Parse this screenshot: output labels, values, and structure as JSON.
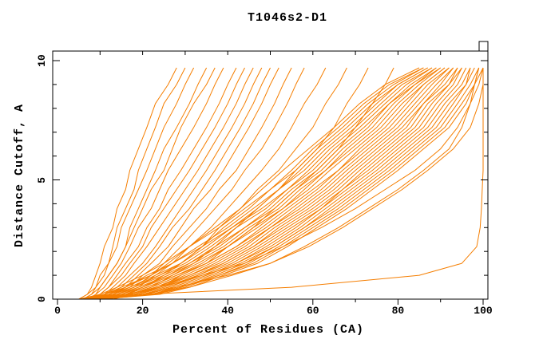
{
  "title": "T1046s2-D1",
  "chart_data": {
    "type": "line",
    "title": "T1046s2-D1",
    "xlabel": "Percent of Residues (CA)",
    "ylabel": "Distance Cutoff, A",
    "xlim": [
      0,
      100
    ],
    "ylim": [
      0,
      10
    ],
    "grid": "off",
    "legend": "none",
    "frame": "full-box-with-corner-notch",
    "line_color": "#f57e00",
    "axis_color": "#000000",
    "x_major_ticks": [
      0,
      20,
      40,
      60,
      80,
      100
    ],
    "x_minor_ticks": [
      10,
      30,
      50,
      70,
      90
    ],
    "x_tick_labels": [
      "0",
      "20",
      "40",
      "60",
      "80",
      "100"
    ],
    "top_ticks": [
      10,
      20,
      30,
      40,
      50,
      60,
      70,
      80,
      90
    ],
    "y_major_ticks": [
      0,
      5,
      10
    ],
    "y_minor_ticks": [
      1,
      2,
      3,
      4,
      6,
      7,
      8,
      9
    ],
    "y_tick_labels": [
      "0",
      "5",
      "10"
    ],
    "description": "Cumulative curves: percent of CA residues (x) under a distance cutoff in Angstroms (y), one curve per model",
    "y_levels": [
      0,
      0.2,
      0.5,
      1,
      1.5,
      2.2,
      3,
      3.8,
      4.6,
      5.4,
      6.3,
      7.2,
      8.2,
      9,
      9.7
    ],
    "series": [
      {
        "x": [
          5,
          7,
          8,
          9,
          10,
          11,
          13,
          14,
          16,
          17,
          19,
          21,
          23,
          26,
          28
        ]
      },
      {
        "x": [
          6,
          8,
          9,
          10,
          12,
          13,
          14,
          16,
          18,
          19,
          21,
          23,
          25,
          28,
          30
        ]
      },
      {
        "x": [
          5,
          7,
          9,
          11,
          12,
          14,
          15,
          17,
          19,
          21,
          23,
          25,
          28,
          30,
          32
        ]
      },
      {
        "x": [
          7,
          9,
          10,
          12,
          14,
          16,
          17,
          19,
          21,
          23,
          25,
          28,
          31,
          33,
          35
        ]
      },
      {
        "x": [
          6,
          8,
          10,
          12,
          14,
          16,
          18,
          20,
          22,
          25,
          27,
          29,
          32,
          35,
          37
        ]
      },
      {
        "x": [
          7,
          9,
          11,
          13,
          15,
          17,
          19,
          22,
          24,
          26,
          29,
          32,
          35,
          37,
          39
        ]
      },
      {
        "x": [
          8,
          10,
          12,
          14,
          16,
          19,
          21,
          24,
          26,
          29,
          32,
          35,
          38,
          40,
          42
        ]
      },
      {
        "x": [
          7,
          10,
          12,
          15,
          17,
          20,
          22,
          25,
          28,
          31,
          34,
          37,
          40,
          42,
          44
        ]
      },
      {
        "x": [
          8,
          11,
          13,
          16,
          18,
          21,
          24,
          27,
          30,
          33,
          36,
          39,
          42,
          44,
          46
        ]
      },
      {
        "x": [
          8,
          11,
          14,
          17,
          20,
          23,
          26,
          29,
          32,
          35,
          38,
          41,
          44,
          46,
          48
        ]
      },
      {
        "x": [
          9,
          12,
          15,
          18,
          21,
          24,
          27,
          31,
          34,
          37,
          40,
          43,
          46,
          48,
          50
        ]
      },
      {
        "x": [
          9,
          13,
          16,
          19,
          22,
          26,
          29,
          32,
          36,
          39,
          42,
          45,
          48,
          50,
          52
        ]
      },
      {
        "x": [
          10,
          13,
          17,
          20,
          24,
          27,
          31,
          35,
          38,
          42,
          45,
          48,
          51,
          53,
          55
        ]
      },
      {
        "x": [
          10,
          14,
          18,
          22,
          25,
          29,
          33,
          37,
          41,
          44,
          48,
          51,
          54,
          56,
          58
        ]
      },
      {
        "x": [
          11,
          15,
          19,
          23,
          27,
          31,
          36,
          40,
          44,
          48,
          52,
          55,
          58,
          61,
          63
        ]
      },
      {
        "x": [
          12,
          16,
          20,
          25,
          29,
          34,
          38,
          43,
          47,
          52,
          56,
          60,
          63,
          66,
          68
        ]
      },
      {
        "x": [
          12,
          17,
          22,
          27,
          32,
          37,
          42,
          47,
          52,
          56,
          61,
          65,
          68,
          71,
          73
        ]
      },
      {
        "x": [
          13,
          18,
          24,
          29,
          35,
          40,
          46,
          51,
          56,
          61,
          66,
          70,
          74,
          77,
          79
        ]
      },
      {
        "x": [
          5,
          10,
          14,
          20,
          25,
          31,
          37,
          43,
          48,
          53,
          59,
          65,
          71,
          77,
          85
        ]
      },
      {
        "x": [
          5,
          11,
          15,
          22,
          26,
          31,
          38,
          44,
          50,
          55,
          60,
          66,
          72,
          78,
          86
        ]
      },
      {
        "x": [
          6,
          11,
          16,
          21,
          27,
          34,
          39,
          45,
          50,
          56,
          61,
          67,
          73,
          79,
          86
        ]
      },
      {
        "x": [
          6,
          12,
          16,
          22,
          27,
          33,
          40,
          46,
          52,
          57,
          62,
          68,
          74,
          80,
          87
        ]
      },
      {
        "x": [
          5,
          12,
          17,
          23,
          29,
          34,
          41,
          47,
          52,
          58,
          63,
          69,
          75,
          80,
          87
        ]
      },
      {
        "x": [
          6,
          13,
          17,
          24,
          29,
          35,
          41,
          48,
          54,
          59,
          64,
          70,
          76,
          81,
          88
        ]
      },
      {
        "x": [
          6,
          13,
          18,
          24,
          30,
          36,
          42,
          49,
          54,
          60,
          65,
          71,
          77,
          82,
          88
        ]
      },
      {
        "x": [
          7,
          14,
          18,
          25,
          31,
          37,
          44,
          50,
          55,
          61,
          66,
          72,
          78,
          83,
          89
        ]
      },
      {
        "x": [
          6,
          14,
          19,
          26,
          31,
          38,
          44,
          51,
          56,
          62,
          67,
          73,
          78,
          84,
          89
        ]
      },
      {
        "x": [
          6,
          15,
          20,
          26,
          32,
          39,
          45,
          52,
          57,
          63,
          68,
          74,
          79,
          84,
          90
        ]
      },
      {
        "x": [
          7,
          15,
          20,
          27,
          33,
          40,
          46,
          53,
          58,
          63,
          69,
          75,
          80,
          85,
          90
        ]
      },
      {
        "x": [
          7,
          16,
          21,
          28,
          34,
          40,
          47,
          53,
          59,
          64,
          70,
          76,
          81,
          86,
          91
        ]
      },
      {
        "x": [
          7,
          16,
          21,
          28,
          35,
          42,
          48,
          54,
          60,
          66,
          71,
          77,
          82,
          86,
          91
        ]
      },
      {
        "x": [
          8,
          17,
          22,
          29,
          35,
          42,
          49,
          55,
          61,
          66,
          72,
          78,
          83,
          87,
          92
        ]
      },
      {
        "x": [
          7,
          17,
          23,
          30,
          36,
          43,
          50,
          56,
          62,
          67,
          73,
          79,
          84,
          88,
          92
        ]
      },
      {
        "x": [
          8,
          18,
          23,
          31,
          37,
          44,
          50,
          57,
          63,
          68,
          74,
          80,
          85,
          89,
          93
        ]
      },
      {
        "x": [
          8,
          18,
          24,
          31,
          38,
          45,
          51,
          58,
          64,
          69,
          75,
          81,
          86,
          90,
          93
        ]
      },
      {
        "x": [
          8,
          19,
          24,
          32,
          39,
          46,
          52,
          59,
          65,
          70,
          76,
          82,
          86,
          91,
          94
        ]
      },
      {
        "x": [
          9,
          19,
          25,
          33,
          39,
          46,
          53,
          60,
          66,
          71,
          77,
          83,
          87,
          92,
          94
        ]
      },
      {
        "x": [
          8,
          20,
          26,
          33,
          40,
          47,
          54,
          61,
          67,
          72,
          78,
          84,
          88,
          92,
          95
        ]
      },
      {
        "x": [
          9,
          20,
          26,
          34,
          41,
          48,
          55,
          62,
          67,
          73,
          79,
          85,
          89,
          93,
          95
        ]
      },
      {
        "x": [
          9,
          21,
          27,
          35,
          42,
          49,
          56,
          62,
          68,
          74,
          80,
          86,
          90,
          94,
          96
        ]
      },
      {
        "x": [
          9,
          21,
          27,
          35,
          42,
          50,
          57,
          63,
          69,
          75,
          81,
          87,
          91,
          95,
          97
        ]
      },
      {
        "x": [
          10,
          22,
          28,
          36,
          43,
          51,
          58,
          64,
          70,
          76,
          82,
          88,
          92,
          96,
          97
        ]
      },
      {
        "x": [
          9,
          22,
          29,
          37,
          44,
          51,
          58,
          65,
          71,
          77,
          83,
          89,
          93,
          96,
          98
        ]
      },
      {
        "x": [
          10,
          23,
          29,
          38,
          45,
          52,
          59,
          66,
          72,
          78,
          84,
          90,
          94,
          97,
          99
        ]
      },
      {
        "x": [
          10,
          23,
          30,
          38,
          46,
          53,
          60,
          67,
          73,
          79,
          85,
          91,
          95,
          98,
          99
        ]
      },
      {
        "x": [
          10,
          24,
          31,
          39,
          47,
          54,
          61,
          68,
          74,
          80,
          86,
          92,
          96,
          98,
          100
        ]
      },
      {
        "x": [
          8,
          20,
          28,
          40,
          50,
          58,
          66,
          73,
          80,
          86,
          92,
          95,
          97,
          98,
          99
        ]
      },
      {
        "x": [
          7,
          16,
          24,
          34,
          44,
          53,
          62,
          70,
          77,
          84,
          90,
          94,
          97,
          99,
          100
        ]
      },
      {
        "x": [
          9,
          22,
          31,
          41,
          50,
          59,
          67,
          74,
          81,
          87,
          93,
          97,
          99,
          100,
          100
        ]
      },
      {
        "x": [
          5,
          20,
          55,
          85,
          95,
          98.5,
          99.3,
          99.6,
          99.8,
          100,
          100,
          100,
          100,
          100,
          100
        ]
      }
    ]
  }
}
